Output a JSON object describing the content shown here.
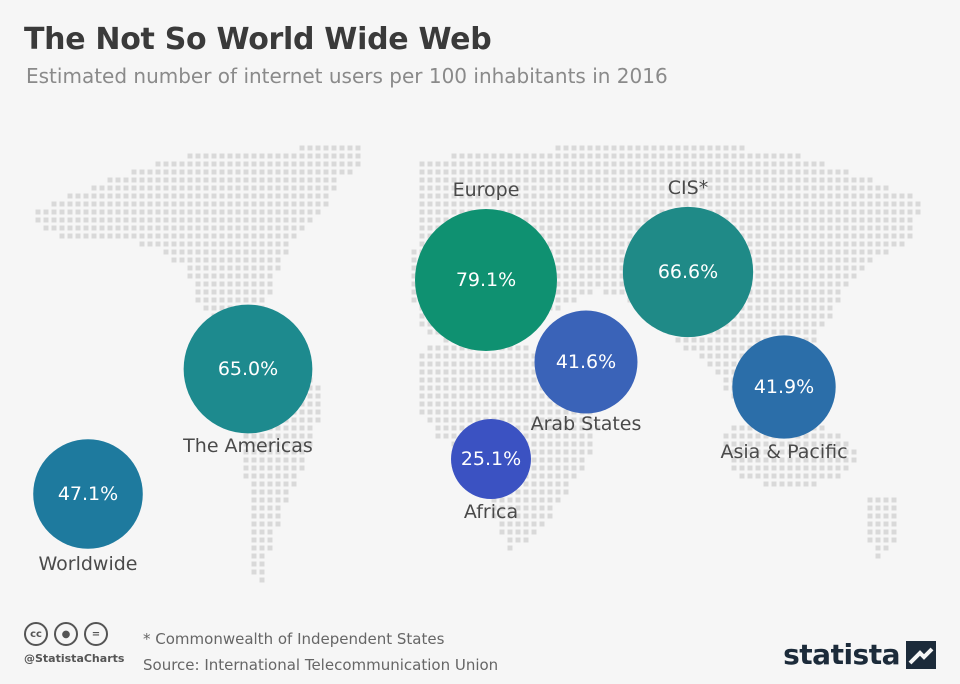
{
  "header": {
    "title": "The Not So World Wide Web",
    "subtitle": "Estimated number of internet users per 100 inhabitants in 2016"
  },
  "chart_data": {
    "type": "bubble-map",
    "title": "The Not So World Wide Web",
    "subtitle": "Estimated number of internet users per 100 inhabitants in 2016",
    "unit": "%",
    "regions": [
      {
        "name": "Europe",
        "value": 79.1,
        "label": "79.1%",
        "color": "#0f9171"
      },
      {
        "name": "CIS*",
        "value": 66.6,
        "label": "66.6%",
        "color": "#1f8a87"
      },
      {
        "name": "The Americas",
        "value": 65.0,
        "label": "65.0%",
        "color": "#1d8a8e"
      },
      {
        "name": "Worldwide",
        "value": 47.1,
        "label": "47.1%",
        "color": "#1e7a9e"
      },
      {
        "name": "Asia & Pacific",
        "value": 41.9,
        "label": "41.9%",
        "color": "#2b6ea9"
      },
      {
        "name": "Arab States",
        "value": 41.6,
        "label": "41.6%",
        "color": "#3a63b8"
      },
      {
        "name": "Africa",
        "value": 25.1,
        "label": "25.1%",
        "color": "#3b52c2"
      }
    ]
  },
  "footer": {
    "handle": "@StatistaCharts",
    "note": "* Commonwealth of Independent States",
    "source": "Source: International Telecommunication Union",
    "brand": "statista",
    "license_icons": [
      "cc-icon",
      "attribution-icon",
      "no-derivatives-icon"
    ]
  },
  "colors": {
    "map_dots": "#d9d9d9",
    "title": "#3a3a3a",
    "subtitle": "#8a8a8a"
  }
}
